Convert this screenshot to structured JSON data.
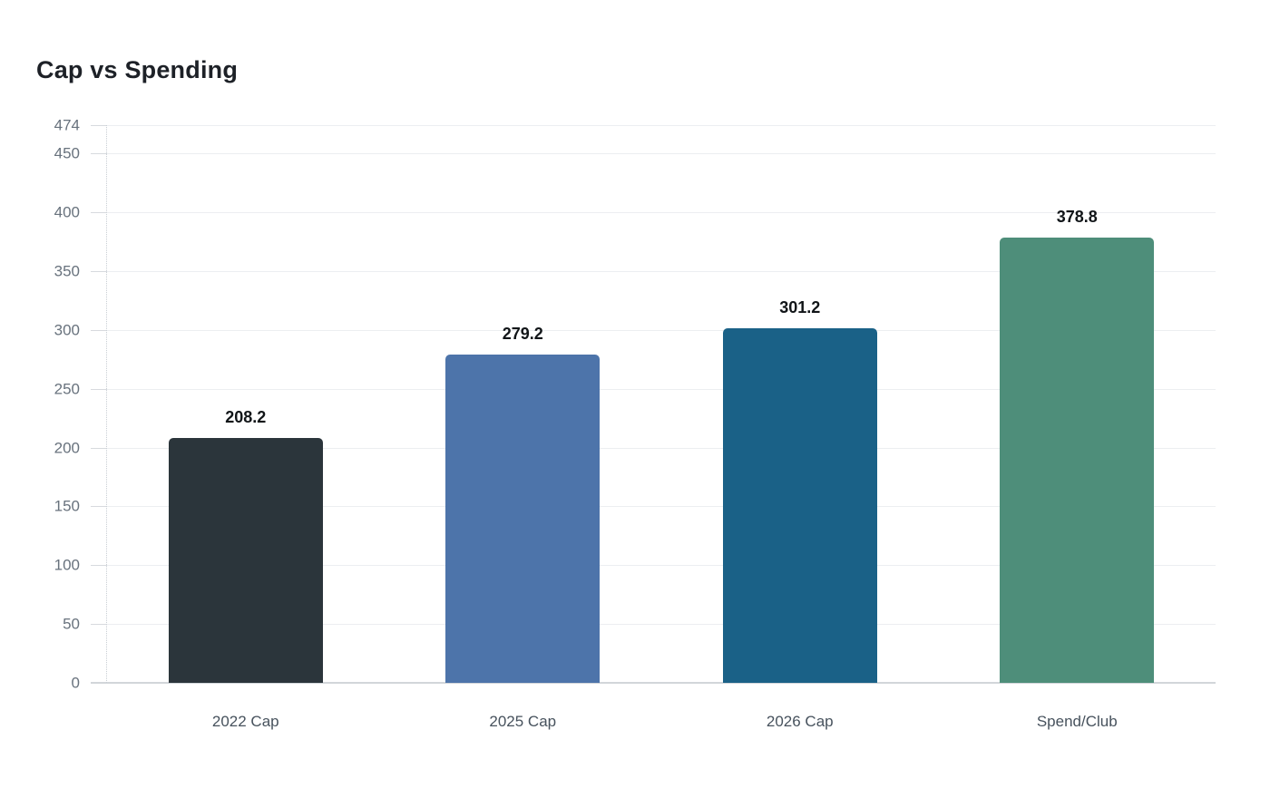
{
  "header": {
    "title": "Cap vs Spending"
  },
  "chart_data": {
    "type": "bar",
    "title": "Cap vs Spending",
    "xlabel": "",
    "ylabel": "",
    "categories": [
      "2022 Cap",
      "2025 Cap",
      "2026 Cap",
      "Spend/Club"
    ],
    "values": [
      208.2,
      279.2,
      301.2,
      378.8
    ],
    "value_labels": [
      "208.2",
      "279.2",
      "301.2",
      "378.8"
    ],
    "bar_colors": [
      "#2b353b",
      "#4d74aa",
      "#1a6187",
      "#4e8e7a"
    ],
    "ylim": [
      0,
      474
    ],
    "yticks": [
      474,
      450,
      400,
      350,
      300,
      250,
      200,
      150,
      100,
      50,
      0
    ],
    "grid": true,
    "legend": false
  },
  "colors": {
    "background": "#ffffff",
    "title_text": "#1d2127",
    "gridline": "#eceef1",
    "tick_mark": "#d7dade",
    "baseline": "#d2d6da",
    "ytick_text": "#68727d",
    "xtick_text": "#47525d",
    "value_text": "#111518",
    "axis_dotted": "#c9ced4"
  }
}
